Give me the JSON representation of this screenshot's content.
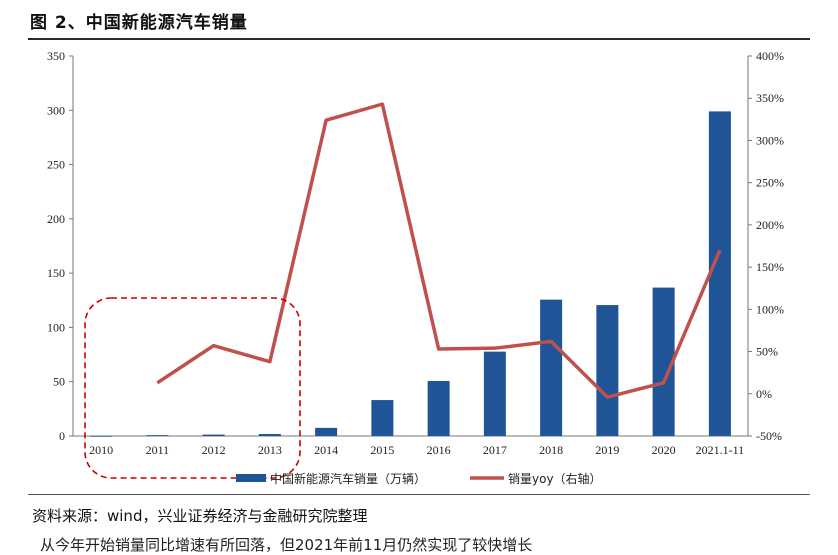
{
  "figure_title": "图 2、中国新能源汽车销量",
  "source_note": "资料来源：wind，兴业证券经济与金融研究院整理",
  "cutoff_text": "从今年开始销量同比增速有所回落，但2021年前11月仍然实现了较快增长",
  "chart_data": {
    "type": "bar",
    "categories": [
      "2010",
      "2011",
      "2012",
      "2013",
      "2014",
      "2015",
      "2016",
      "2017",
      "2018",
      "2019",
      "2020",
      "2021.1-11"
    ],
    "series": [
      {
        "name": "中国新能源汽车销量（万辆）",
        "type": "bar",
        "axis": "left",
        "color": "#1f5597",
        "values": [
          0.05,
          0.8,
          1.3,
          1.8,
          7.5,
          33.1,
          50.7,
          77.7,
          125.6,
          120.6,
          136.7,
          299.0
        ]
      },
      {
        "name": "销量yoy（右轴）",
        "type": "line",
        "axis": "right",
        "color": "#c0504d",
        "values": [
          null,
          13,
          57,
          38,
          324,
          343,
          53,
          54,
          62,
          -4,
          13,
          170
        ]
      }
    ],
    "y_left": {
      "min": 0,
      "max": 350,
      "ticks": [
        "0",
        "50",
        "100",
        "150",
        "200",
        "250",
        "300",
        "350"
      ]
    },
    "y_right": {
      "min": -50,
      "max": 400,
      "ticks": [
        "-50%",
        "0%",
        "50%",
        "100%",
        "150%",
        "200%",
        "250%",
        "300%",
        "350%",
        "400%"
      ]
    },
    "highlight_box": {
      "color": "#cc0000",
      "style": "dashed",
      "covers_categories": [
        "2010",
        "2013"
      ]
    },
    "grid": false,
    "legend_position": "bottom"
  }
}
